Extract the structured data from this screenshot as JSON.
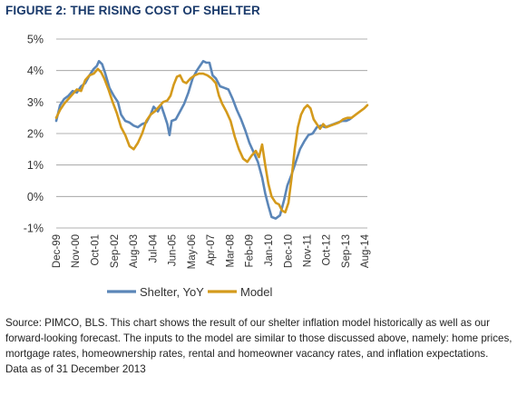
{
  "figure_title": "FIGURE 2: THE RISING COST OF SHELTER",
  "caption": {
    "source": "Source: PIMCO, BLS. This chart shows the result of our shelter inflation model historically as well as our forward-looking forecast. The inputs to the model are similar to those discussed above, namely: home prices, mortgage rates, homeownership rates, rental and homeowner vacancy rates, and inflation expectations.",
    "as_of": "Data as of 31 December 2013"
  },
  "colors": {
    "shelter": "#5b86b8",
    "model": "#d49a1c",
    "grid": "#999999"
  },
  "chart_data": {
    "type": "line",
    "title": "FIGURE 2: THE RISING COST OF SHELTER",
    "xlabel": "",
    "ylabel": "",
    "ylim": [
      -1,
      5
    ],
    "xlim": [
      1999.92,
      2014.7
    ],
    "grid": "horizontal",
    "legend_position": "bottom",
    "y_ticks": [
      {
        "value": 5,
        "label": "5%"
      },
      {
        "value": 4,
        "label": "4%"
      },
      {
        "value": 3,
        "label": "3%"
      },
      {
        "value": 2,
        "label": "2%"
      },
      {
        "value": 1,
        "label": "1%"
      },
      {
        "value": 0,
        "label": "0%"
      },
      {
        "value": -1,
        "label": "-1%"
      }
    ],
    "x_ticks": [
      {
        "value": 1999.92,
        "label": "Dec-99"
      },
      {
        "value": 2000.83,
        "label": "Nov-00"
      },
      {
        "value": 2001.75,
        "label": "Oct-01"
      },
      {
        "value": 2002.67,
        "label": "Sep-02"
      },
      {
        "value": 2003.58,
        "label": "Aug-03"
      },
      {
        "value": 2004.5,
        "label": "Jul-04"
      },
      {
        "value": 2005.42,
        "label": "Jun-05"
      },
      {
        "value": 2006.33,
        "label": "May-06"
      },
      {
        "value": 2007.25,
        "label": "Apr-07"
      },
      {
        "value": 2008.17,
        "label": "Mar-08"
      },
      {
        "value": 2009.08,
        "label": "Feb-09"
      },
      {
        "value": 2010.0,
        "label": "Jan-10"
      },
      {
        "value": 2010.92,
        "label": "Dec-10"
      },
      {
        "value": 2011.83,
        "label": "Nov-11"
      },
      {
        "value": 2012.75,
        "label": "Oct-12"
      },
      {
        "value": 2013.67,
        "label": "Sep-13"
      },
      {
        "value": 2014.58,
        "label": "Aug-14"
      }
    ],
    "series": [
      {
        "name": "Shelter, YoY",
        "points": [
          [
            1999.92,
            2.4
          ],
          [
            2000.1,
            2.9
          ],
          [
            2000.3,
            3.1
          ],
          [
            2000.5,
            3.2
          ],
          [
            2000.7,
            3.35
          ],
          [
            2000.9,
            3.3
          ],
          [
            2001.1,
            3.5
          ],
          [
            2001.3,
            3.6
          ],
          [
            2001.5,
            3.85
          ],
          [
            2001.7,
            4.05
          ],
          [
            2001.85,
            4.15
          ],
          [
            2001.95,
            4.3
          ],
          [
            2002.1,
            4.2
          ],
          [
            2002.25,
            3.9
          ],
          [
            2002.45,
            3.45
          ],
          [
            2002.65,
            3.2
          ],
          [
            2002.85,
            3.0
          ],
          [
            2003.0,
            2.6
          ],
          [
            2003.2,
            2.4
          ],
          [
            2003.4,
            2.35
          ],
          [
            2003.6,
            2.25
          ],
          [
            2003.8,
            2.2
          ],
          [
            2004.0,
            2.3
          ],
          [
            2004.2,
            2.35
          ],
          [
            2004.4,
            2.6
          ],
          [
            2004.55,
            2.85
          ],
          [
            2004.75,
            2.7
          ],
          [
            2004.9,
            2.9
          ],
          [
            2005.05,
            2.6
          ],
          [
            2005.2,
            2.3
          ],
          [
            2005.3,
            1.95
          ],
          [
            2005.4,
            2.4
          ],
          [
            2005.6,
            2.45
          ],
          [
            2005.8,
            2.7
          ],
          [
            2006.0,
            2.95
          ],
          [
            2006.2,
            3.3
          ],
          [
            2006.4,
            3.75
          ],
          [
            2006.6,
            4.0
          ],
          [
            2006.75,
            4.15
          ],
          [
            2006.9,
            4.3
          ],
          [
            2007.05,
            4.25
          ],
          [
            2007.2,
            4.25
          ],
          [
            2007.35,
            3.85
          ],
          [
            2007.5,
            3.75
          ],
          [
            2007.7,
            3.5
          ],
          [
            2007.9,
            3.45
          ],
          [
            2008.1,
            3.4
          ],
          [
            2008.3,
            3.1
          ],
          [
            2008.5,
            2.75
          ],
          [
            2008.7,
            2.45
          ],
          [
            2008.9,
            2.1
          ],
          [
            2009.1,
            1.7
          ],
          [
            2009.3,
            1.4
          ],
          [
            2009.5,
            1.1
          ],
          [
            2009.7,
            0.6
          ],
          [
            2009.85,
            0.1
          ],
          [
            2010.0,
            -0.3
          ],
          [
            2010.15,
            -0.65
          ],
          [
            2010.35,
            -0.7
          ],
          [
            2010.55,
            -0.6
          ],
          [
            2010.75,
            -0.1
          ],
          [
            2010.9,
            0.35
          ],
          [
            2011.1,
            0.7
          ],
          [
            2011.3,
            1.1
          ],
          [
            2011.5,
            1.5
          ],
          [
            2011.7,
            1.75
          ],
          [
            2011.9,
            1.95
          ],
          [
            2012.1,
            2.0
          ],
          [
            2012.3,
            2.2
          ],
          [
            2012.5,
            2.25
          ],
          [
            2012.7,
            2.2
          ],
          [
            2012.9,
            2.25
          ],
          [
            2013.1,
            2.3
          ],
          [
            2013.3,
            2.35
          ],
          [
            2013.5,
            2.4
          ],
          [
            2013.7,
            2.4
          ],
          [
            2013.85,
            2.45
          ],
          [
            2013.95,
            2.5
          ]
        ]
      },
      {
        "name": "Model",
        "points": [
          [
            1999.92,
            2.5
          ],
          [
            2000.1,
            2.75
          ],
          [
            2000.3,
            2.95
          ],
          [
            2000.5,
            3.1
          ],
          [
            2000.7,
            3.25
          ],
          [
            2000.9,
            3.4
          ],
          [
            2001.1,
            3.35
          ],
          [
            2001.3,
            3.7
          ],
          [
            2001.5,
            3.85
          ],
          [
            2001.7,
            3.9
          ],
          [
            2001.9,
            4.05
          ],
          [
            2002.05,
            3.95
          ],
          [
            2002.2,
            3.75
          ],
          [
            2002.4,
            3.4
          ],
          [
            2002.6,
            3.0
          ],
          [
            2002.8,
            2.65
          ],
          [
            2003.0,
            2.2
          ],
          [
            2003.2,
            1.95
          ],
          [
            2003.4,
            1.6
          ],
          [
            2003.6,
            1.5
          ],
          [
            2003.8,
            1.7
          ],
          [
            2004.0,
            2.0
          ],
          [
            2004.2,
            2.4
          ],
          [
            2004.4,
            2.6
          ],
          [
            2004.6,
            2.7
          ],
          [
            2004.8,
            2.85
          ],
          [
            2005.0,
            3.0
          ],
          [
            2005.2,
            3.05
          ],
          [
            2005.35,
            3.2
          ],
          [
            2005.5,
            3.55
          ],
          [
            2005.65,
            3.8
          ],
          [
            2005.8,
            3.85
          ],
          [
            2005.95,
            3.65
          ],
          [
            2006.1,
            3.6
          ],
          [
            2006.3,
            3.75
          ],
          [
            2006.5,
            3.85
          ],
          [
            2006.7,
            3.9
          ],
          [
            2006.9,
            3.9
          ],
          [
            2007.1,
            3.85
          ],
          [
            2007.3,
            3.75
          ],
          [
            2007.5,
            3.6
          ],
          [
            2007.65,
            3.2
          ],
          [
            2007.8,
            2.95
          ],
          [
            2008.0,
            2.7
          ],
          [
            2008.2,
            2.4
          ],
          [
            2008.4,
            1.9
          ],
          [
            2008.6,
            1.5
          ],
          [
            2008.8,
            1.2
          ],
          [
            2009.0,
            1.1
          ],
          [
            2009.2,
            1.3
          ],
          [
            2009.4,
            1.45
          ],
          [
            2009.55,
            1.25
          ],
          [
            2009.7,
            1.65
          ],
          [
            2009.85,
            1.0
          ],
          [
            2010.0,
            0.4
          ],
          [
            2010.15,
            0.0
          ],
          [
            2010.35,
            -0.2
          ],
          [
            2010.5,
            -0.25
          ],
          [
            2010.65,
            -0.45
          ],
          [
            2010.8,
            -0.5
          ],
          [
            2010.95,
            -0.2
          ],
          [
            2011.1,
            0.6
          ],
          [
            2011.25,
            1.5
          ],
          [
            2011.4,
            2.2
          ],
          [
            2011.55,
            2.6
          ],
          [
            2011.7,
            2.8
          ],
          [
            2011.85,
            2.9
          ],
          [
            2012.0,
            2.8
          ],
          [
            2012.15,
            2.45
          ],
          [
            2012.3,
            2.3
          ],
          [
            2012.45,
            2.15
          ],
          [
            2012.6,
            2.3
          ],
          [
            2012.75,
            2.2
          ],
          [
            2012.95,
            2.25
          ],
          [
            2013.15,
            2.3
          ],
          [
            2013.35,
            2.35
          ],
          [
            2013.55,
            2.45
          ],
          [
            2013.75,
            2.5
          ],
          [
            2013.95,
            2.5
          ],
          [
            2014.15,
            2.6
          ],
          [
            2014.35,
            2.7
          ],
          [
            2014.55,
            2.8
          ],
          [
            2014.7,
            2.9
          ]
        ]
      }
    ]
  }
}
